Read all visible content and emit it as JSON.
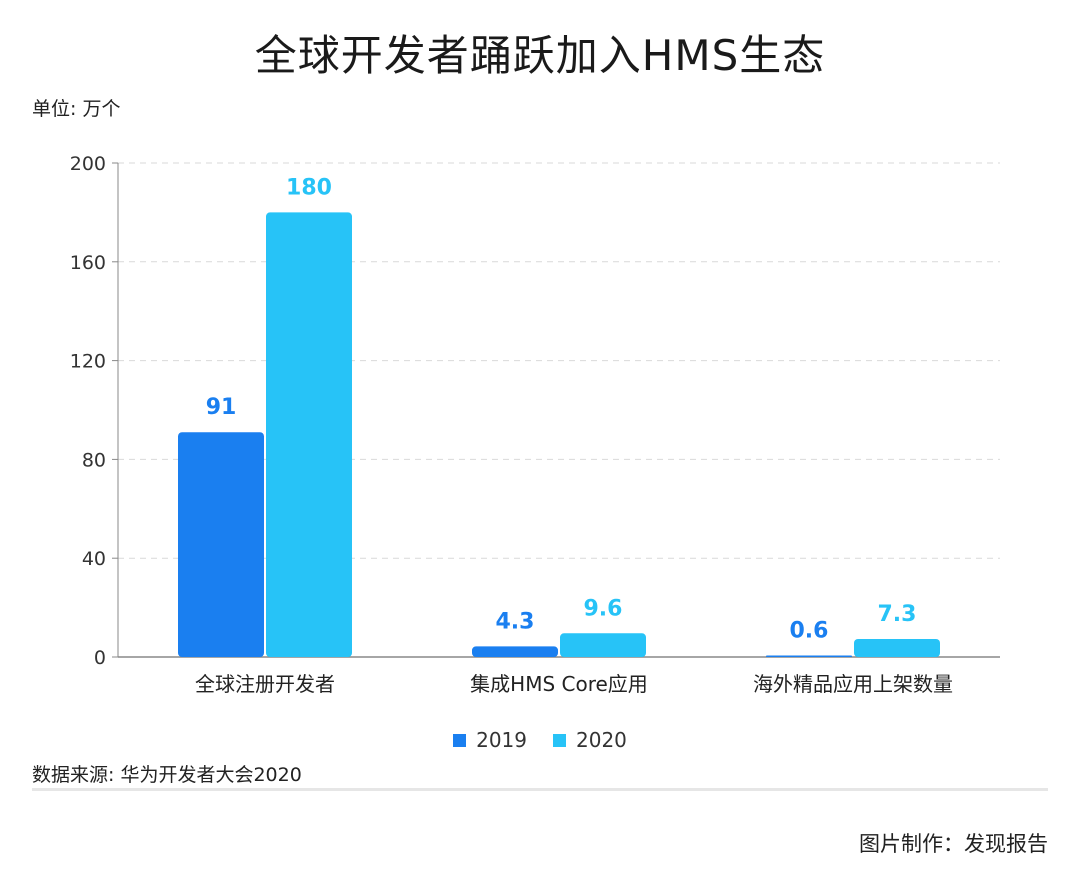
{
  "title": "全球开发者踊跃加入HMS生态",
  "unit_label": "单位: 万个",
  "source": "数据来源: 华为开发者大会2020",
  "credit": "图片制作：发现报告",
  "colors": {
    "series_2019": "#1a7ff0",
    "series_2020": "#27c3f7",
    "grid": "#d9d9d9",
    "axis": "#888888"
  },
  "chart_data": {
    "type": "bar",
    "title": "全球开发者踊跃加入HMS生态",
    "categories": [
      "全球注册开发者",
      "集成HMS Core应用",
      "海外精品应用上架数量"
    ],
    "series": [
      {
        "name": "2019",
        "values": [
          91,
          4.3,
          0.6
        ],
        "labels": [
          "91",
          "4.3",
          "0.6"
        ]
      },
      {
        "name": "2020",
        "values": [
          180,
          9.6,
          7.3
        ],
        "labels": [
          "180",
          "9.6",
          "7.3"
        ]
      }
    ],
    "ylim": [
      0,
      200
    ],
    "yticks": [
      0,
      40,
      80,
      120,
      160,
      200
    ],
    "grid": true,
    "legend": "bottom-center",
    "xlabel": "",
    "ylabel": ""
  }
}
